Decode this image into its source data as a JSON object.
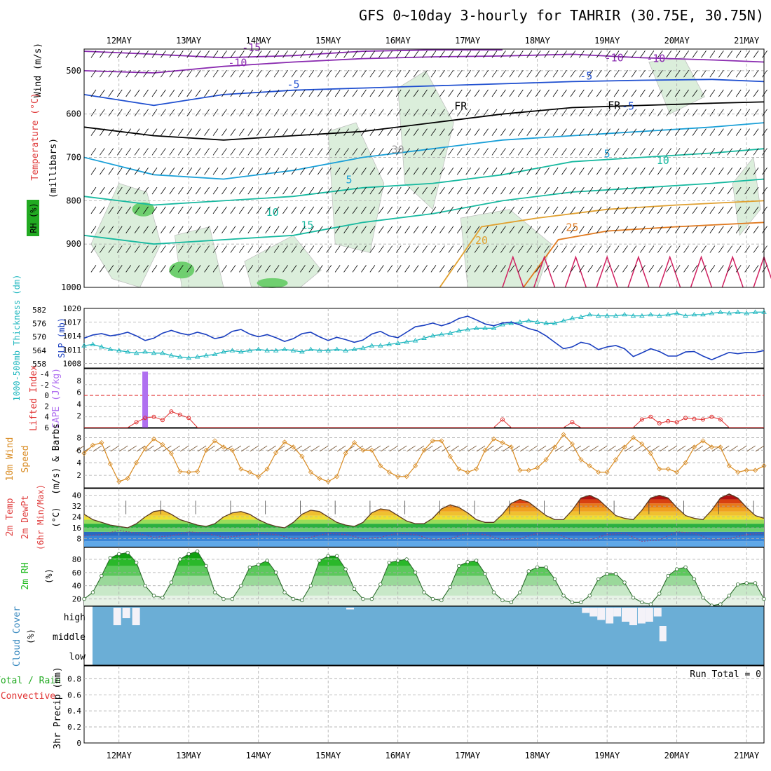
{
  "title": "GFS 0~10day 3-hourly for TAHRIR (30.75E, 30.75N)",
  "colors": {
    "wind": "#000000",
    "temperature": "#e04040",
    "rh": "#22aa22",
    "slp": "#1a3fc0",
    "thickness": "#22b8c0",
    "cape": "#b070f0",
    "lifted_index": "#e03030",
    "wind10": "#d88a20",
    "rh2m": "#22bb22",
    "cloud": "#6baed6",
    "precip_total": "#22aa22",
    "precip_conv": "#e03030"
  },
  "days": [
    "12MAY",
    "13MAY",
    "14MAY",
    "15MAY",
    "16MAY",
    "17MAY",
    "18MAY",
    "19MAY",
    "20MAY",
    "21MAY"
  ],
  "panels": {
    "upper": {
      "ylabels": [
        "Wind (m/s)",
        "Temperature (°C)",
        "(millibars)"
      ],
      "rh_label": "RH (%)",
      "ticks": [
        "500",
        "600",
        "700",
        "800",
        "900",
        "1000"
      ],
      "contour_labels": [
        "-15",
        "-10",
        "-5",
        "FR",
        "-5",
        "-10",
        "-10",
        "-5",
        "FR",
        "5",
        "5",
        "10",
        "10",
        "15",
        "20",
        "25",
        "30"
      ]
    },
    "slp": {
      "ylabel_left": "1000-500mb Thickness (dm)",
      "ylabel_right": "SLP (mb)",
      "ticks_left": [
        "582",
        "576",
        "570",
        "564",
        "558"
      ],
      "ticks_right": [
        "1020",
        "1017",
        "1014",
        "1011",
        "1008"
      ]
    },
    "cape": {
      "ylabel_a": "Lifted Index",
      "ylabel_b": "CAPE (J/kg)",
      "ticks_li": [
        "-4",
        "-2",
        "0",
        "2",
        "4",
        "6"
      ],
      "ticks_cape": [
        "8",
        "6",
        "4",
        "2"
      ]
    },
    "wind10": {
      "ylabel_a": "10m Wind",
      "ylabel_b": "Speed",
      "ylabel_c": "(m/s) & Barbs",
      "ticks": [
        "8",
        "6",
        "4",
        "2"
      ]
    },
    "temp2m": {
      "ylabel_a": "2m Temp",
      "ylabel_b": "2m DewPt",
      "ylabel_c": "(6hr Min/Max)",
      "ylabel_d": "(°C)",
      "ticks": [
        "40",
        "32",
        "24",
        "16",
        "8"
      ]
    },
    "rh2m": {
      "ylabel_a": "2m RH",
      "ylabel_b": "(%)",
      "ticks": [
        "80",
        "60",
        "40",
        "20"
      ]
    },
    "cloud": {
      "ylabel_a": "Cloud Cover",
      "ylabel_b": "(%)",
      "levels": [
        "high",
        "middle",
        "low"
      ]
    },
    "precip": {
      "ylabel_a": "Total / Rain",
      "ylabel_b": "Convective",
      "ylabel_c": "3hr Precip (mm)",
      "ticks": [
        "0.8",
        "0.6",
        "0.4",
        "0.2",
        "0"
      ],
      "run_total": "Run Total = 0"
    }
  },
  "chart_data": [
    {
      "type": "line",
      "name": "SLP",
      "x_days": [
        11.5,
        11.625,
        11.75,
        11.875,
        12,
        12.125,
        12.25,
        12.375,
        12.5,
        12.625,
        12.75,
        12.875,
        13,
        13.125,
        13.25,
        13.375,
        13.5,
        13.625,
        13.75,
        13.875,
        14,
        14.125,
        14.25,
        14.375,
        14.5,
        14.625,
        14.75,
        14.875,
        15,
        15.125,
        15.25,
        15.375,
        15.5,
        15.625,
        15.75,
        15.875,
        16,
        16.125,
        16.25,
        16.375,
        16.5,
        16.625,
        16.75,
        16.875,
        17,
        17.125,
        17.25,
        17.375,
        17.5,
        17.625,
        17.75,
        17.875,
        18,
        18.125,
        18.25,
        18.375,
        18.5,
        18.625,
        18.75,
        18.875,
        19,
        19.125,
        19.25,
        19.375,
        19.5,
        19.625,
        19.75,
        19.875,
        20,
        20.125,
        20.25,
        20.375,
        20.5,
        20.625,
        20.75,
        20.875,
        21,
        21.125,
        21.25
      ],
      "values": [
        1013.5,
        1014.2,
        1014.5,
        1014.0,
        1014.3,
        1014.8,
        1014.0,
        1013.0,
        1013.5,
        1014.6,
        1015.2,
        1014.6,
        1014.2,
        1014.8,
        1014.3,
        1013.4,
        1013.8,
        1015.0,
        1015.4,
        1014.4,
        1013.8,
        1014.3,
        1013.6,
        1012.8,
        1013.4,
        1014.5,
        1014.8,
        1013.8,
        1013.0,
        1013.7,
        1013.2,
        1012.6,
        1013.1,
        1014.4,
        1015.0,
        1014.0,
        1013.6,
        1014.8,
        1016.0,
        1016.3,
        1016.8,
        1016.2,
        1016.8,
        1017.8,
        1018.3,
        1017.5,
        1016.6,
        1016.2,
        1016.8,
        1017.0,
        1016.4,
        1015.6,
        1015.1,
        1014.0,
        1012.6,
        1011.2,
        1011.6,
        1012.6,
        1012.2,
        1011.0,
        1011.6,
        1011.9,
        1011.2,
        1009.5,
        1010.3,
        1011.2,
        1010.6,
        1009.6,
        1009.6,
        1010.5,
        1010.6,
        1009.6,
        1008.8,
        1009.6,
        1010.4,
        1010.1,
        1010.4,
        1010.4,
        1010.8
      ]
    },
    {
      "type": "line",
      "name": "Thickness",
      "x_days": [
        11.5,
        11.625,
        11.75,
        11.875,
        12,
        12.125,
        12.25,
        12.375,
        12.5,
        12.625,
        12.75,
        12.875,
        13,
        13.125,
        13.25,
        13.375,
        13.5,
        13.625,
        13.75,
        13.875,
        14,
        14.125,
        14.25,
        14.375,
        14.5,
        14.625,
        14.75,
        14.875,
        15,
        15.125,
        15.25,
        15.375,
        15.5,
        15.625,
        15.75,
        15.875,
        16,
        16.125,
        16.25,
        16.375,
        16.5,
        16.625,
        16.75,
        16.875,
        17,
        17.125,
        17.25,
        17.375,
        17.5,
        17.625,
        17.75,
        17.875,
        18,
        18.125,
        18.25,
        18.375,
        18.5,
        18.625,
        18.75,
        18.875,
        19,
        19.125,
        19.25,
        19.375,
        19.5,
        19.625,
        19.75,
        19.875,
        20,
        20.125,
        20.25,
        20.375,
        20.5,
        20.625,
        20.75,
        20.875,
        21,
        21.125,
        21.25
      ],
      "values": [
        567.0,
        567.5,
        566.5,
        565.5,
        565.0,
        564.5,
        564.0,
        564.5,
        564.0,
        564.0,
        563.0,
        562.5,
        562.0,
        562.5,
        563.0,
        563.5,
        564.5,
        565.0,
        564.5,
        565.0,
        565.5,
        565.0,
        565.0,
        565.5,
        565.0,
        564.5,
        565.5,
        565.0,
        565.0,
        565.5,
        565.0,
        565.5,
        566.0,
        567.0,
        567.0,
        567.5,
        568.0,
        568.5,
        569.0,
        570.0,
        571.0,
        571.5,
        572.0,
        573.0,
        573.5,
        574.0,
        574.0,
        574.0,
        575.5,
        576.0,
        576.5,
        577.0,
        576.5,
        576.0,
        576.0,
        577.0,
        578.0,
        578.5,
        579.5,
        579.0,
        579.0,
        579.0,
        579.5,
        579.0,
        579.0,
        579.5,
        579.0,
        579.5,
        580.0,
        579.0,
        579.5,
        579.5,
        580.0,
        580.5,
        580.0,
        580.5,
        580.0,
        580.5,
        580.5
      ]
    },
    {
      "type": "bar",
      "name": "CAPE",
      "x_days": [
        12.375
      ],
      "values": [
        9.5
      ]
    },
    {
      "type": "line",
      "name": "Lifted Index",
      "x_days": [
        11.5,
        11.625,
        11.75,
        11.875,
        12,
        12.125,
        12.25,
        12.375,
        12.5,
        12.625,
        12.75,
        12.875,
        13,
        13.125,
        13.25,
        17.375,
        17.5,
        17.625,
        18.375,
        18.5,
        18.625,
        19.375,
        19.5,
        19.625,
        19.75,
        19.875,
        20,
        20.125,
        20.25,
        20.375,
        20.5,
        20.625,
        20.75,
        21.25
      ],
      "values": [
        6,
        6,
        6,
        6,
        6,
        6,
        5,
        4.2,
        4.0,
        4.6,
        3.0,
        3.6,
        4.2,
        6,
        6,
        6,
        4.5,
        6,
        6,
        5.0,
        6,
        6,
        4.5,
        4.0,
        5.2,
        4.8,
        5.0,
        4.2,
        4.4,
        4.5,
        4.0,
        4.5,
        6,
        6
      ]
    },
    {
      "type": "line",
      "name": "10m Wind Speed",
      "x_days": [
        11.5,
        11.625,
        11.75,
        11.875,
        12,
        12.125,
        12.25,
        12.375,
        12.5,
        12.625,
        12.75,
        12.875,
        13,
        13.125,
        13.25,
        13.375,
        13.5,
        13.625,
        13.75,
        13.875,
        14,
        14.125,
        14.25,
        14.375,
        14.5,
        14.625,
        14.75,
        14.875,
        15,
        15.125,
        15.25,
        15.375,
        15.5,
        15.625,
        15.75,
        15.875,
        16,
        16.125,
        16.25,
        16.375,
        16.5,
        16.625,
        16.75,
        16.875,
        17,
        17.125,
        17.25,
        17.375,
        17.5,
        17.625,
        17.75,
        17.875,
        18,
        18.125,
        18.25,
        18.375,
        18.5,
        18.625,
        18.75,
        18.875,
        19,
        19.125,
        19.25,
        19.375,
        19.5,
        19.625,
        19.75,
        19.875,
        20,
        20.125,
        20.25,
        20.375,
        20.5,
        20.625,
        20.75,
        20.875,
        21,
        21.125,
        21.25
      ],
      "values": [
        5.5,
        6.8,
        7.2,
        3.8,
        1.0,
        1.5,
        4.0,
        6.3,
        7.8,
        6.9,
        5.5,
        2.6,
        2.5,
        2.6,
        6.0,
        7.5,
        6.5,
        6.0,
        3.0,
        2.5,
        1.8,
        3.0,
        5.6,
        7.3,
        6.5,
        5.0,
        2.5,
        1.5,
        1.0,
        1.8,
        5.5,
        7.2,
        6.0,
        6.0,
        3.5,
        2.5,
        1.8,
        1.8,
        3.5,
        6.0,
        7.5,
        7.5,
        5.0,
        3.0,
        2.5,
        3.0,
        6.0,
        7.8,
        7.2,
        6.5,
        2.8,
        2.8,
        3.2,
        4.5,
        6.5,
        8.5,
        7.0,
        4.5,
        3.5,
        2.5,
        2.5,
        4.5,
        6.5,
        8.0,
        7.0,
        5.5,
        3.0,
        3.0,
        2.5,
        4.0,
        6.5,
        7.5,
        6.5,
        6.5,
        3.5,
        2.5,
        2.8,
        2.8,
        3.5
      ]
    },
    {
      "type": "line",
      "name": "2m Temp",
      "x_days": [
        11.5,
        11.625,
        11.75,
        11.875,
        12,
        12.125,
        12.25,
        12.375,
        12.5,
        12.625,
        12.75,
        12.875,
        13,
        13.125,
        13.25,
        13.375,
        13.5,
        13.625,
        13.75,
        13.875,
        14,
        14.125,
        14.25,
        14.375,
        14.5,
        14.625,
        14.75,
        14.875,
        15,
        15.125,
        15.25,
        15.375,
        15.5,
        15.625,
        15.75,
        15.875,
        16,
        16.125,
        16.25,
        16.375,
        16.5,
        16.625,
        16.75,
        16.875,
        17,
        17.125,
        17.25,
        17.375,
        17.5,
        17.625,
        17.75,
        17.875,
        18,
        18.125,
        18.25,
        18.375,
        18.5,
        18.625,
        18.75,
        18.875,
        19,
        19.125,
        19.25,
        19.375,
        19.5,
        19.625,
        19.75,
        19.875,
        20,
        20.125,
        20.25,
        20.375,
        20.5,
        20.625,
        20.75,
        20.875,
        21,
        21.125,
        21.25
      ],
      "values": [
        26,
        22,
        20,
        18,
        17,
        16,
        19,
        24,
        28,
        29,
        26,
        22,
        20,
        18,
        17,
        19,
        24,
        27,
        28,
        26,
        22,
        19,
        17,
        16,
        20,
        26,
        29,
        28,
        24,
        20,
        18,
        17,
        20,
        27,
        30,
        29,
        25,
        21,
        19,
        19,
        23,
        30,
        33,
        31,
        27,
        22,
        20,
        20,
        26,
        34,
        37,
        35,
        30,
        25,
        22,
        22,
        29,
        38,
        40,
        37,
        31,
        25,
        23,
        22,
        29,
        38,
        40,
        38,
        31,
        25,
        23,
        22,
        29,
        38,
        41,
        38,
        31,
        25,
        23
      ]
    },
    {
      "type": "line",
      "name": "2m DewPt",
      "x_days": [
        11.5,
        11.75,
        12,
        12.25,
        12.5,
        12.75,
        13,
        13.25,
        13.5,
        13.75,
        14,
        14.25,
        14.5,
        14.75,
        15,
        15.25,
        15.5,
        15.75,
        16,
        16.25,
        16.5,
        16.75,
        17,
        17.25,
        17.5,
        17.75,
        18,
        18.25,
        18.5,
        18.75,
        19,
        19.25,
        19.5,
        19.75,
        20,
        20.25,
        20.5,
        20.75,
        21,
        21.25
      ],
      "values": [
        10,
        11,
        14,
        12,
        9,
        10,
        13,
        12,
        9,
        10,
        12,
        11,
        8,
        9,
        12,
        11,
        8,
        9,
        12,
        11,
        7,
        8,
        12,
        11,
        7,
        8,
        12,
        12,
        7,
        7,
        11,
        12,
        6,
        7,
        13,
        12,
        7,
        8,
        11,
        12
      ]
    },
    {
      "type": "area",
      "name": "2m RH",
      "x_days": [
        11.5,
        11.625,
        11.75,
        11.875,
        12,
        12.125,
        12.25,
        12.375,
        12.5,
        12.625,
        12.75,
        12.875,
        13,
        13.125,
        13.25,
        13.375,
        13.5,
        13.625,
        13.75,
        13.875,
        14,
        14.125,
        14.25,
        14.375,
        14.5,
        14.625,
        14.75,
        14.875,
        15,
        15.125,
        15.25,
        15.375,
        15.5,
        15.625,
        15.75,
        15.875,
        16,
        16.125,
        16.25,
        16.375,
        16.5,
        16.625,
        16.75,
        16.875,
        17,
        17.125,
        17.25,
        17.375,
        17.5,
        17.625,
        17.75,
        17.875,
        18,
        18.125,
        18.25,
        18.375,
        18.5,
        18.625,
        18.75,
        18.875,
        19,
        19.125,
        19.25,
        19.375,
        19.5,
        19.625,
        19.75,
        19.875,
        20,
        20.125,
        20.25,
        20.375,
        20.5,
        20.625,
        20.75,
        20.875,
        21,
        21.125,
        21.25
      ],
      "values": [
        20,
        30,
        55,
        82,
        88,
        90,
        75,
        40,
        25,
        22,
        45,
        80,
        88,
        92,
        70,
        30,
        20,
        20,
        40,
        68,
        72,
        78,
        60,
        30,
        20,
        18,
        40,
        78,
        85,
        85,
        65,
        35,
        20,
        20,
        42,
        75,
        78,
        80,
        60,
        30,
        20,
        18,
        38,
        70,
        76,
        78,
        58,
        30,
        18,
        15,
        30,
        62,
        68,
        68,
        50,
        25,
        15,
        15,
        25,
        50,
        58,
        58,
        45,
        22,
        15,
        12,
        28,
        55,
        65,
        68,
        50,
        22,
        10,
        12,
        25,
        42,
        44,
        44,
        20
      ]
    },
    {
      "type": "bar",
      "name": "Cloud Cover High",
      "x_days": [
        11.97,
        12.1,
        12.24,
        15.31,
        18.69,
        18.8,
        18.91,
        19.03,
        19.14,
        19.26,
        19.37,
        19.49,
        19.6,
        19.72
      ],
      "values": [
        100,
        60,
        100,
        10,
        30,
        50,
        70,
        90,
        50,
        80,
        100,
        90,
        80,
        50
      ]
    }
  ]
}
